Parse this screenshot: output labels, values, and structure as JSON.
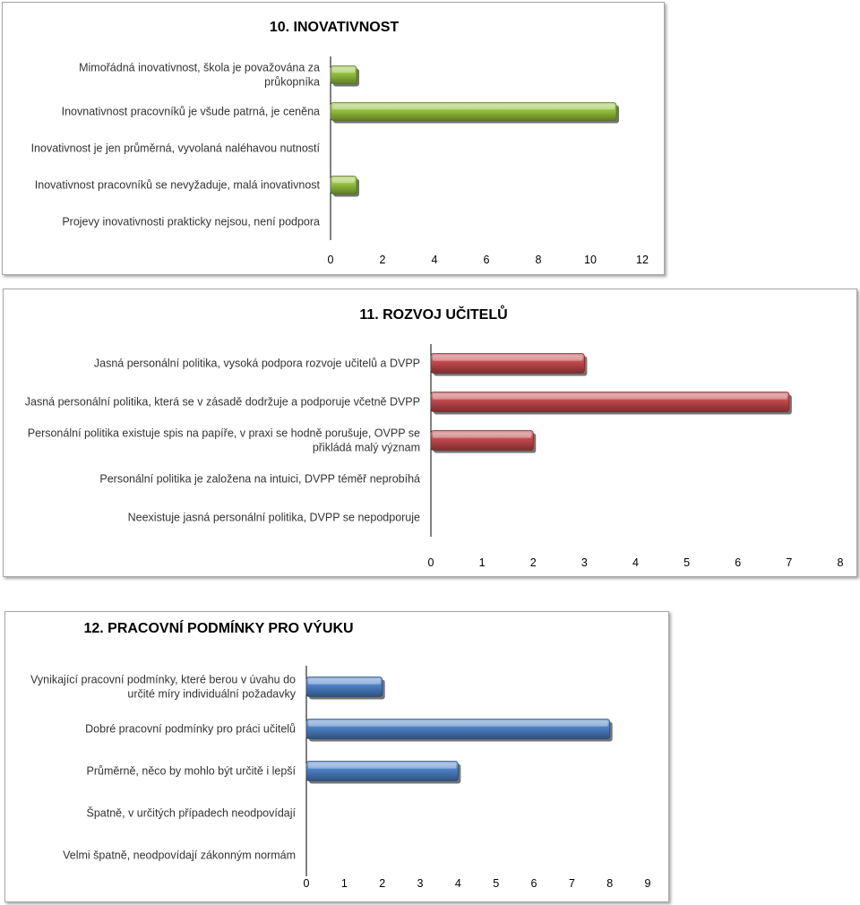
{
  "chart_data": [
    {
      "type": "bar",
      "orientation": "horizontal",
      "title": "10. INOVATIVNOST",
      "categories": [
        "Mimořádná inovativnost, škola je považována za průkopníka",
        "Inovnativnost pracovníků je všude patrná, je ceněna",
        "Inovativnost je jen průměrná, vyvolaná naléhavou nutností",
        "Inovativnost pracovníků se nevyžaduje, malá inovativnost",
        "Projevy inovativnosti prakticky nejsou, není podpora"
      ],
      "values": [
        1,
        11,
        0,
        1,
        0
      ],
      "xlim": [
        0,
        12
      ],
      "ticks": [
        0,
        2,
        4,
        6,
        8,
        10,
        12
      ],
      "color": "#92c03c"
    },
    {
      "type": "bar",
      "orientation": "horizontal",
      "title": "11. ROZVOJ UČITELŮ",
      "categories": [
        "Jasná personální politika, vysoká podpora rozvoje učitelů a DVPP",
        "Jasná personální politika, která se v zásadě dodržuje a podporuje včetně DVPP",
        "Personální politika existuje spis na papíře, v praxi se hodně porušuje, OVPP se přikládá malý význam",
        "Personální politika je založena na intuici, DVPP téměř neprobíhá",
        "Neexistuje jasná personální politika, DVPP se nepodporuje"
      ],
      "values": [
        3,
        7,
        2,
        0,
        0
      ],
      "xlim": [
        0,
        8
      ],
      "ticks": [
        0,
        1,
        2,
        3,
        4,
        5,
        6,
        7,
        8
      ],
      "color": "#c0474a"
    },
    {
      "type": "bar",
      "orientation": "horizontal",
      "title": "12. PRACOVNÍ PODMÍNKY PRO VÝUKU",
      "categories": [
        "Vynikající pracovní podmínky, které berou v úvahu do určité míry individuální požadavky",
        "Dobré pracovní podmínky pro práci učitelů",
        "Průměrně, něco by mohlo být určitě i lepší",
        "Špatně, v určitých případech neodpovídají",
        "Velmi špatně, neodpovídají zákonným normám"
      ],
      "values": [
        2,
        8,
        4,
        0,
        0
      ],
      "xlim": [
        0,
        9
      ],
      "ticks": [
        0,
        1,
        2,
        3,
        4,
        5,
        6,
        7,
        8,
        9
      ],
      "color": "#4a7ec2"
    }
  ]
}
